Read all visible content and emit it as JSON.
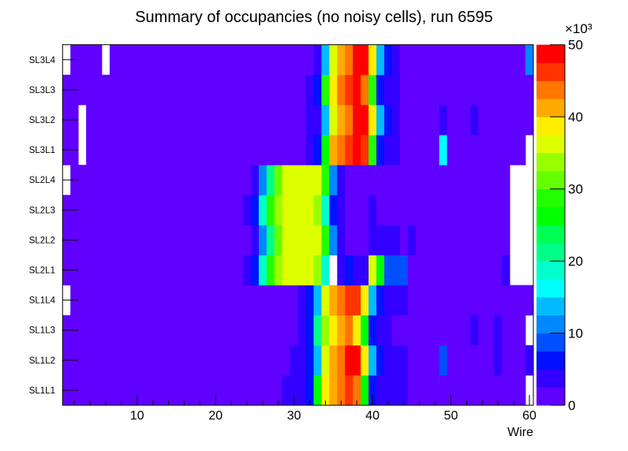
{
  "chart_data": {
    "type": "heatmap",
    "title": "Summary of occupancies (no noisy cells), run 6595",
    "xlabel": "Wire",
    "ylabel": "",
    "xlim": [
      0.5,
      60.5
    ],
    "x_ticks": [
      10,
      20,
      30,
      40,
      50,
      60
    ],
    "y_categories": [
      "SL1L1",
      "SL1L2",
      "SL1L3",
      "SL1L4",
      "SL2L1",
      "SL2L2",
      "SL2L3",
      "SL2L4",
      "SL3L1",
      "SL3L2",
      "SL3L3",
      "SL3L4"
    ],
    "z_unit_label": "×10³",
    "zlim": [
      0,
      50
    ],
    "z_ticks": [
      0,
      10,
      20,
      30,
      40,
      50
    ],
    "z_levels": 20,
    "palette": [
      "#6000ff",
      "#3300ff",
      "#0011ff",
      "#0050ff",
      "#0088ff",
      "#00bbff",
      "#00ffff",
      "#00ffcc",
      "#00ff88",
      "#00ff55",
      "#00ff00",
      "#22ff00",
      "#66ff00",
      "#99ff00",
      "#ddff00",
      "#ffee00",
      "#ffaa00",
      "#ff7700",
      "#ff3300",
      "#ff0000"
    ],
    "z_thousands": {
      "SL1L1": [
        1,
        1,
        1,
        1,
        1,
        1,
        1,
        1,
        1,
        1,
        1,
        1,
        1,
        1,
        1,
        1,
        1,
        1,
        1,
        1,
        1,
        1,
        1,
        1,
        1,
        1,
        1,
        1,
        4,
        4,
        4,
        6,
        26,
        39,
        41,
        44,
        46,
        44,
        26,
        6,
        4,
        4,
        4,
        4,
        1,
        1,
        1,
        1,
        1,
        1,
        1,
        1,
        1,
        1,
        1,
        1,
        1,
        1,
        1,
        0
      ],
      "SL1L2": [
        1,
        1,
        1,
        1,
        1,
        1,
        1,
        1,
        1,
        1,
        1,
        1,
        1,
        1,
        1,
        1,
        1,
        1,
        1,
        1,
        1,
        1,
        1,
        1,
        1,
        1,
        1,
        1,
        1,
        4,
        4,
        6,
        14,
        36,
        41,
        44,
        49,
        49,
        39,
        14,
        6,
        4,
        4,
        4,
        1,
        1,
        1,
        1,
        9,
        1,
        1,
        1,
        1,
        1,
        1,
        4,
        1,
        1,
        1,
        4
      ],
      "SL1L3": [
        1,
        1,
        1,
        1,
        1,
        1,
        1,
        1,
        1,
        1,
        1,
        1,
        1,
        1,
        1,
        1,
        1,
        1,
        1,
        1,
        1,
        1,
        1,
        1,
        1,
        1,
        1,
        1,
        1,
        1,
        4,
        6,
        21,
        34,
        39,
        41,
        44,
        39,
        26,
        6,
        4,
        4,
        1,
        1,
        1,
        1,
        1,
        1,
        1,
        1,
        1,
        1,
        4,
        1,
        1,
        4,
        1,
        1,
        1,
        0
      ],
      "SL1L4": [
        0,
        1,
        1,
        1,
        1,
        1,
        1,
        1,
        1,
        1,
        1,
        1,
        1,
        1,
        1,
        1,
        1,
        1,
        1,
        1,
        1,
        1,
        1,
        1,
        1,
        1,
        1,
        1,
        1,
        1,
        4,
        6,
        14,
        36,
        41,
        44,
        46,
        46,
        39,
        14,
        6,
        4,
        4,
        4,
        1,
        1,
        1,
        1,
        1,
        1,
        1,
        1,
        1,
        1,
        1,
        1,
        1,
        1,
        1,
        1
      ],
      "SL2L1": [
        1,
        1,
        1,
        1,
        1,
        1,
        1,
        1,
        1,
        1,
        1,
        1,
        1,
        1,
        1,
        1,
        1,
        1,
        1,
        1,
        1,
        1,
        1,
        4,
        6,
        19,
        29,
        34,
        36,
        36,
        36,
        36,
        34,
        19,
        0,
        4,
        6,
        4,
        4,
        36,
        26,
        9,
        9,
        9,
        1,
        1,
        1,
        1,
        1,
        1,
        1,
        1,
        1,
        1,
        1,
        1,
        4,
        0,
        0,
        0
      ],
      "SL2L2": [
        1,
        1,
        1,
        1,
        1,
        1,
        1,
        1,
        1,
        1,
        1,
        1,
        1,
        1,
        1,
        1,
        1,
        1,
        1,
        1,
        1,
        1,
        1,
        1,
        4,
        11,
        21,
        31,
        36,
        36,
        36,
        36,
        36,
        29,
        11,
        4,
        1,
        1,
        1,
        4,
        4,
        4,
        4,
        1,
        4,
        1,
        1,
        1,
        1,
        1,
        1,
        1,
        1,
        1,
        1,
        1,
        1,
        0,
        0,
        0
      ],
      "SL2L3": [
        1,
        1,
        1,
        1,
        1,
        1,
        1,
        1,
        1,
        1,
        1,
        1,
        1,
        1,
        1,
        1,
        1,
        1,
        1,
        1,
        1,
        1,
        1,
        4,
        6,
        19,
        29,
        34,
        36,
        36,
        36,
        36,
        34,
        19,
        6,
        4,
        1,
        1,
        1,
        4,
        1,
        1,
        1,
        1,
        1,
        1,
        1,
        1,
        1,
        1,
        1,
        1,
        1,
        1,
        1,
        1,
        1,
        0,
        0,
        0
      ],
      "SL2L4": [
        0,
        1,
        1,
        1,
        1,
        1,
        1,
        1,
        1,
        1,
        1,
        1,
        1,
        1,
        1,
        1,
        1,
        1,
        1,
        1,
        1,
        1,
        1,
        1,
        4,
        11,
        21,
        31,
        36,
        36,
        36,
        36,
        36,
        29,
        11,
        4,
        1,
        1,
        1,
        1,
        1,
        1,
        1,
        1,
        1,
        1,
        1,
        1,
        1,
        1,
        1,
        1,
        1,
        1,
        1,
        1,
        1,
        0,
        0,
        0
      ],
      "SL3L1": [
        1,
        1,
        0,
        1,
        1,
        1,
        1,
        1,
        1,
        1,
        1,
        1,
        1,
        1,
        1,
        1,
        1,
        1,
        1,
        1,
        1,
        1,
        1,
        1,
        1,
        1,
        1,
        1,
        1,
        1,
        1,
        4,
        6,
        26,
        41,
        44,
        46,
        49,
        46,
        29,
        6,
        4,
        4,
        1,
        1,
        1,
        1,
        1,
        16,
        1,
        1,
        1,
        1,
        1,
        1,
        1,
        1,
        1,
        1,
        0
      ],
      "SL3L2": [
        1,
        1,
        0,
        1,
        1,
        1,
        1,
        1,
        1,
        1,
        1,
        1,
        1,
        1,
        1,
        1,
        1,
        1,
        1,
        1,
        1,
        1,
        1,
        1,
        1,
        1,
        1,
        1,
        1,
        1,
        1,
        4,
        4,
        14,
        36,
        41,
        44,
        49,
        49,
        39,
        14,
        6,
        4,
        1,
        1,
        1,
        1,
        1,
        4,
        1,
        1,
        1,
        4,
        1,
        1,
        1,
        1,
        1,
        1,
        1
      ],
      "SL3L3": [
        1,
        1,
        1,
        1,
        1,
        1,
        1,
        1,
        1,
        1,
        1,
        1,
        1,
        1,
        1,
        1,
        1,
        1,
        1,
        1,
        1,
        1,
        1,
        1,
        1,
        1,
        1,
        1,
        1,
        1,
        1,
        4,
        6,
        29,
        39,
        44,
        46,
        49,
        44,
        29,
        6,
        4,
        4,
        1,
        1,
        1,
        1,
        1,
        1,
        1,
        1,
        1,
        1,
        1,
        1,
        1,
        1,
        1,
        1,
        1
      ],
      "SL3L4": [
        0,
        1,
        1,
        1,
        1,
        0,
        1,
        1,
        1,
        1,
        1,
        1,
        1,
        1,
        1,
        1,
        1,
        1,
        1,
        1,
        1,
        1,
        1,
        1,
        1,
        1,
        1,
        1,
        1,
        1,
        1,
        1,
        4,
        14,
        36,
        41,
        44,
        49,
        49,
        39,
        14,
        6,
        4,
        1,
        1,
        1,
        1,
        1,
        1,
        1,
        1,
        1,
        1,
        1,
        1,
        1,
        1,
        1,
        1,
        11
      ]
    },
    "grid": false,
    "colorbar": "right"
  }
}
